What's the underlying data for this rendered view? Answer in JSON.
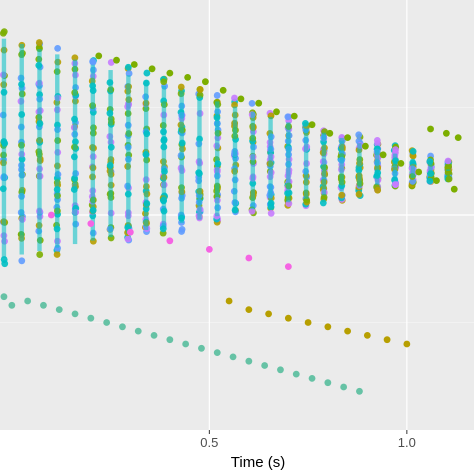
{
  "chart_data": {
    "type": "scatter",
    "title": "",
    "xlabel": "Time (s)",
    "ylabel": "",
    "xlim": [
      -0.03,
      1.17
    ],
    "ylim": [
      0,
      1
    ],
    "x_ticks": [
      0.5,
      1.0
    ],
    "x_tick_labels": [
      "0.5",
      "1.0"
    ],
    "y_ticks": [],
    "grid": true,
    "legend": "none",
    "panel_background": "#ebebeb",
    "grid_color": "#ffffff",
    "colors": {
      "green": "#7cae00",
      "teal": "#00bfc4",
      "blue": "#619cff",
      "purple": "#c77cff",
      "pink": "#f564e3",
      "gold": "#b79f00",
      "mint": "#00ba38",
      "aqua": "#66c2a5"
    },
    "series": [
      {
        "color": "#7cae00",
        "points": [
          [
            0.22,
            0.87
          ],
          [
            0.265,
            0.86
          ],
          [
            0.31,
            0.85
          ],
          [
            0.355,
            0.84
          ],
          [
            0.4,
            0.83
          ],
          [
            0.445,
            0.82
          ],
          [
            0.49,
            0.81
          ],
          [
            0.535,
            0.79
          ],
          [
            0.58,
            0.77
          ],
          [
            0.625,
            0.76
          ],
          [
            0.67,
            0.74
          ],
          [
            0.715,
            0.73
          ],
          [
            0.76,
            0.71
          ],
          [
            0.805,
            0.69
          ],
          [
            0.85,
            0.68
          ],
          [
            0.895,
            0.66
          ],
          [
            0.94,
            0.64
          ],
          [
            0.985,
            0.62
          ],
          [
            1.03,
            0.6
          ],
          [
            1.075,
            0.58
          ],
          [
            1.12,
            0.56
          ],
          [
            1.06,
            0.7
          ],
          [
            1.1,
            0.69
          ],
          [
            1.13,
            0.68
          ]
        ]
      },
      {
        "color": "#66c2a5",
        "points": [
          [
            -0.02,
            0.31
          ],
          [
            0.0,
            0.29
          ],
          [
            0.04,
            0.3
          ],
          [
            0.08,
            0.29
          ],
          [
            0.12,
            0.28
          ],
          [
            0.16,
            0.27
          ],
          [
            0.2,
            0.26
          ],
          [
            0.24,
            0.25
          ],
          [
            0.28,
            0.24
          ],
          [
            0.32,
            0.23
          ],
          [
            0.36,
            0.22
          ],
          [
            0.4,
            0.21
          ],
          [
            0.44,
            0.2
          ],
          [
            0.48,
            0.19
          ],
          [
            0.52,
            0.18
          ],
          [
            0.56,
            0.17
          ],
          [
            0.6,
            0.16
          ],
          [
            0.64,
            0.15
          ],
          [
            0.68,
            0.14
          ],
          [
            0.72,
            0.13
          ],
          [
            0.76,
            0.12
          ],
          [
            0.8,
            0.11
          ],
          [
            0.84,
            0.1
          ],
          [
            0.88,
            0.09
          ]
        ]
      },
      {
        "color": "#b79f00",
        "points": [
          [
            0.55,
            0.3
          ],
          [
            0.6,
            0.28
          ],
          [
            0.65,
            0.27
          ],
          [
            0.7,
            0.26
          ],
          [
            0.75,
            0.25
          ],
          [
            0.8,
            0.24
          ],
          [
            0.85,
            0.23
          ],
          [
            0.9,
            0.22
          ],
          [
            0.95,
            0.21
          ],
          [
            1.0,
            0.2
          ]
        ]
      },
      {
        "color": "#f564e3",
        "points": [
          [
            0.1,
            0.5
          ],
          [
            0.2,
            0.48
          ],
          [
            0.3,
            0.46
          ],
          [
            0.4,
            0.44
          ],
          [
            0.5,
            0.42
          ],
          [
            0.6,
            0.4
          ],
          [
            0.7,
            0.38
          ]
        ]
      }
    ]
  }
}
